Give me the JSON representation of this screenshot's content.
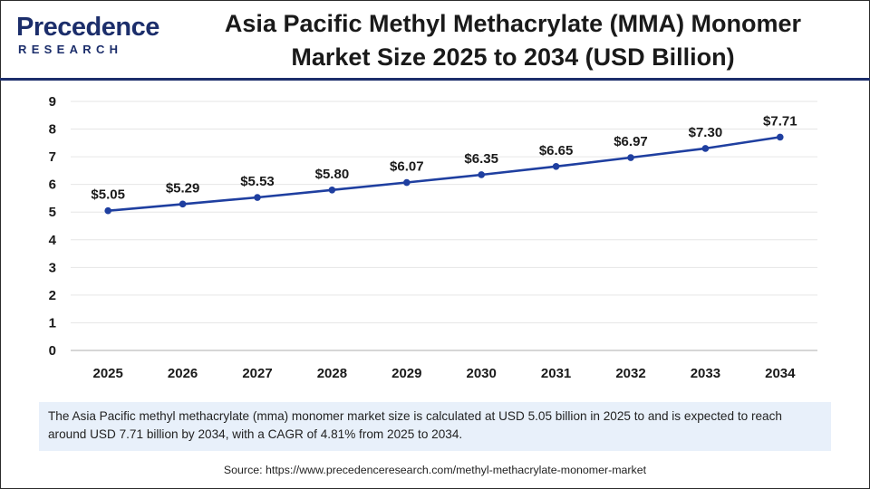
{
  "brand": {
    "name": "Precedence",
    "sub": "RESEARCH"
  },
  "title": {
    "line1": "Asia Pacific Methyl Methacrylate (MMA) Monomer",
    "line2": "Market Size 2025 to 2034 (USD Billion)"
  },
  "chart_data": {
    "type": "line",
    "x": [
      "2025",
      "2026",
      "2027",
      "2028",
      "2029",
      "2030",
      "2031",
      "2032",
      "2033",
      "2034"
    ],
    "series": [
      {
        "values": [
          5.05,
          5.29,
          5.53,
          5.8,
          6.07,
          6.35,
          6.65,
          6.97,
          7.3,
          7.71
        ],
        "labels": [
          "$5.05",
          "$5.29",
          "$5.53",
          "$5.80",
          "$6.07",
          "$6.35",
          "$6.65",
          "$6.97",
          "$7.30",
          "$7.71"
        ],
        "color": "#1f3fa0"
      }
    ],
    "yticks": [
      "0",
      "1",
      "2",
      "3",
      "4",
      "5",
      "6",
      "7",
      "8",
      "9"
    ],
    "ylim": [
      0,
      9
    ],
    "grid": true,
    "xlabel": "",
    "ylabel": ""
  },
  "note": "The Asia Pacific methyl methacrylate (mma) monomer market size is calculated at USD 5.05 billion in 2025 to and is expected to reach around USD 7.71 billion by 2034, with a CAGR of 4.81% from 2025 to 2034.",
  "source": "Source: https://www.precedenceresearch.com/methyl-methacrylate-monomer-market"
}
